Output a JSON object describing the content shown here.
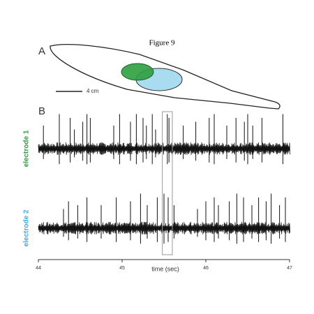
{
  "figure": {
    "title": "Figure 9",
    "panel_a": {
      "label": "A",
      "scale_bar": "4 cm"
    },
    "panel_b": {
      "label": "B"
    }
  },
  "chart_data": {
    "type": "spikes",
    "x_label": "time (sec)",
    "xlim": [
      44,
      47
    ],
    "xticks": [
      44,
      45,
      46,
      47
    ],
    "ylim": [
      -1,
      1
    ],
    "highlight_x": [
      45.48,
      45.6
    ],
    "series": [
      {
        "name": "electrode 1",
        "color": "#2e9e3e",
        "spike_times": [
          44.06,
          44.25,
          44.38,
          44.43,
          44.53,
          44.58,
          44.62,
          44.9,
          44.97,
          45.1,
          45.17,
          45.25,
          45.29,
          45.36,
          45.4,
          45.54,
          45.56,
          45.73,
          45.88,
          46.04,
          46.1,
          46.25,
          46.36,
          46.46,
          46.5,
          46.56,
          46.67,
          46.92
        ],
        "spike_heights": [
          0.6,
          0.9,
          0.8,
          0.5,
          0.7,
          0.9,
          0.8,
          0.6,
          0.9,
          0.7,
          0.9,
          0.8,
          0.6,
          0.9,
          0.5,
          0.9,
          0.8,
          0.6,
          0.7,
          0.8,
          0.9,
          0.6,
          0.8,
          0.7,
          0.9,
          0.6,
          0.8,
          0.9
        ]
      },
      {
        "name": "electrode 2",
        "color": "#3aaee0",
        "spike_times": [
          44.3,
          44.36,
          44.47,
          44.58,
          44.75,
          44.93,
          45.1,
          45.22,
          45.3,
          45.42,
          45.5,
          45.55,
          45.62,
          45.9,
          46.0,
          46.1,
          46.15,
          46.28,
          46.37,
          46.45,
          46.55,
          46.63,
          46.72,
          46.78,
          46.88,
          46.95
        ],
        "spike_heights": [
          0.5,
          0.7,
          0.6,
          0.8,
          0.6,
          0.8,
          0.7,
          0.9,
          0.6,
          0.8,
          0.9,
          0.8,
          0.6,
          0.5,
          0.7,
          0.8,
          0.6,
          0.7,
          0.9,
          0.8,
          0.6,
          0.8,
          0.7,
          0.9,
          0.6,
          0.8
        ]
      }
    ]
  }
}
